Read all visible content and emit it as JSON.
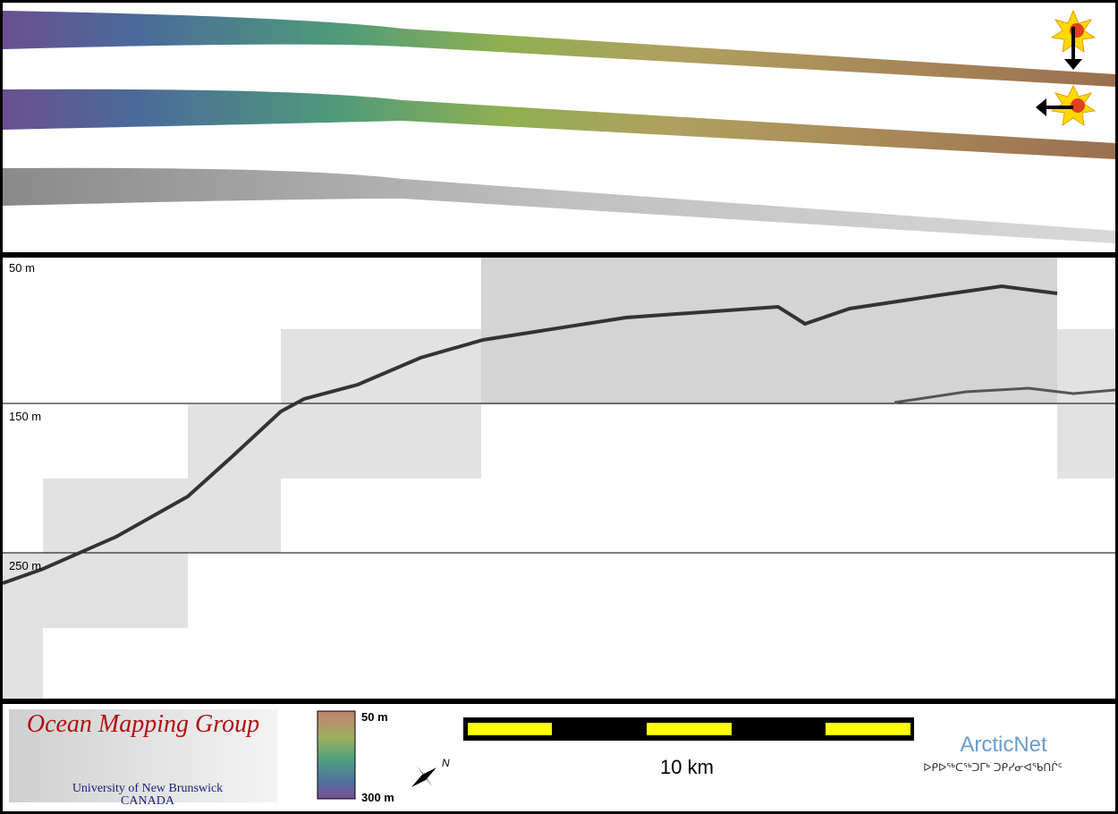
{
  "profile": {
    "depth_labels": [
      "50 m",
      "150 m",
      "250 m"
    ]
  },
  "logo": {
    "title": "Ocean Mapping Group",
    "university": "University of New Brunswick",
    "country": "CANADA"
  },
  "colorbar": {
    "top_label": "50 m",
    "bottom_label": "300 m"
  },
  "compass": {
    "label": "N"
  },
  "scale_bar": {
    "label": "10 km"
  },
  "partner": {
    "name": "ArcticNet",
    "name_inuktitut": "ᐅᑭᐅᖅᑕᖅᑐᒥᒃ ᑐᑭᓯᓂᐊᖃᑎᒌᑦ"
  }
}
